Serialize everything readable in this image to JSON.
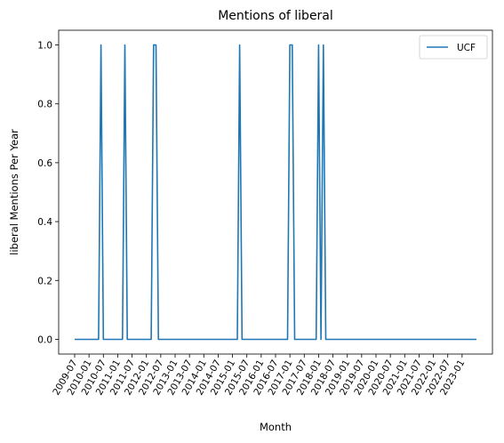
{
  "chart_data": {
    "type": "line",
    "title": "Mentions of liberal",
    "xlabel": "Month",
    "ylabel": "liberal Mentions Per Year",
    "ylim": [
      -0.05,
      1.05
    ],
    "yticks": [
      0.0,
      0.2,
      0.4,
      0.6,
      0.8,
      1.0
    ],
    "ytick_labels": [
      "0.0",
      "0.2",
      "0.4",
      "0.6",
      "0.8",
      "1.0"
    ],
    "xtick_labels": [
      "2009-07",
      "2010-01",
      "2010-07",
      "2011-01",
      "2011-07",
      "2012-01",
      "2012-07",
      "2013-01",
      "2013-07",
      "2014-01",
      "2014-07",
      "2015-01",
      "2015-07",
      "2016-01",
      "2016-07",
      "2017-01",
      "2017-07",
      "2018-01",
      "2018-07",
      "2019-01",
      "2019-07",
      "2020-01",
      "2020-07",
      "2021-01",
      "2021-07",
      "2022-01",
      "2022-07",
      "2023-01"
    ],
    "legend_position": "top-right",
    "grid": false,
    "series": [
      {
        "name": "UCF",
        "color": "#1f77b4",
        "x": [
          "2009-07",
          "2010-05",
          "2010-06",
          "2010-07",
          "2011-03",
          "2011-04",
          "2011-05",
          "2012-03",
          "2012-04",
          "2012-05",
          "2012-06",
          "2015-03",
          "2015-04",
          "2015-05",
          "2016-12",
          "2017-01",
          "2017-02",
          "2017-03",
          "2017-04",
          "2017-12",
          "2018-01",
          "2018-02",
          "2018-03",
          "2018-04",
          "2023-07"
        ],
        "values": [
          0,
          0,
          1,
          0,
          0,
          1,
          0,
          0,
          1,
          1,
          0,
          0,
          1,
          0,
          0,
          1,
          1,
          0,
          0,
          0,
          1,
          0,
          1,
          0,
          0
        ]
      }
    ]
  }
}
